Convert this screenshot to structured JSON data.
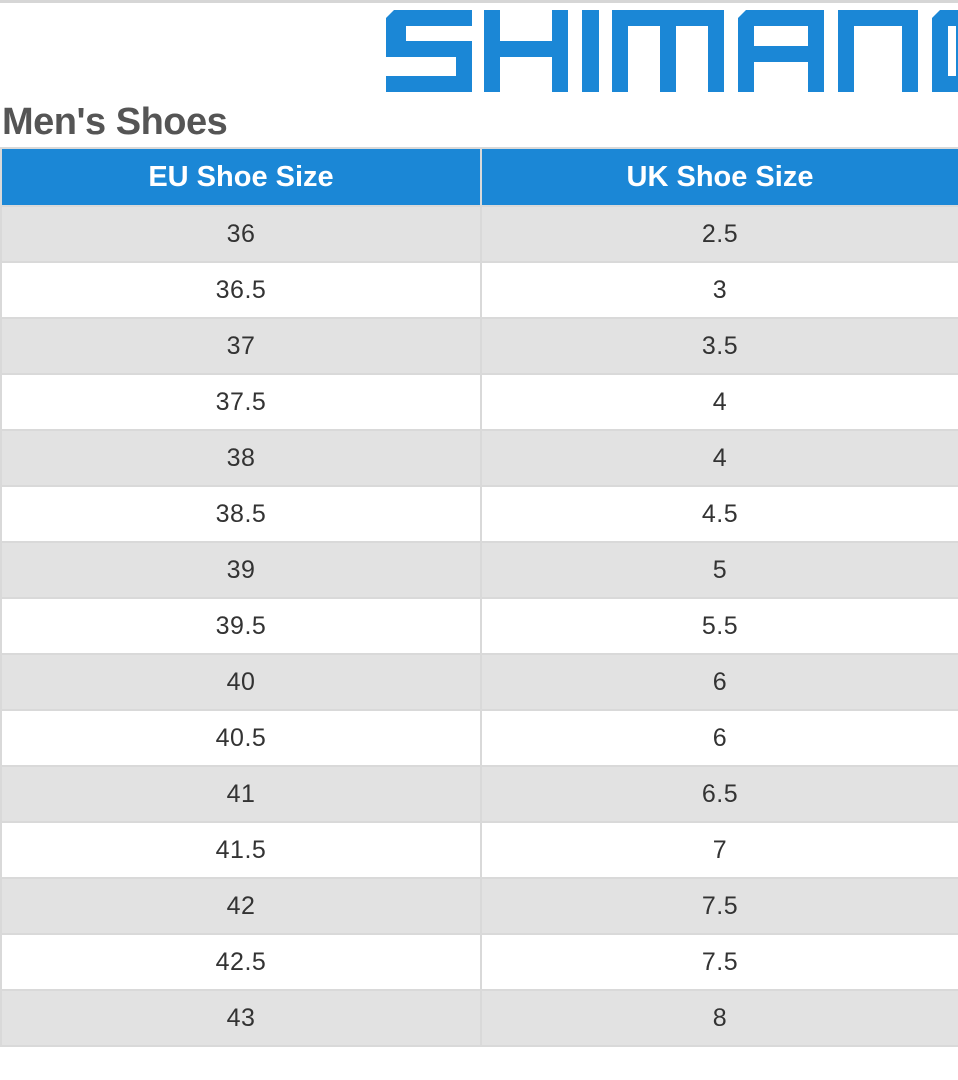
{
  "brand": {
    "logo_text": "SHIMANO",
    "color": "#1b87d6"
  },
  "title": "Men's Shoes",
  "table": {
    "header_color": "#1b87d6",
    "columns": [
      "EU Shoe Size",
      "UK Shoe Size"
    ],
    "rows": [
      [
        "36",
        "2.5"
      ],
      [
        "36.5",
        "3"
      ],
      [
        "37",
        "3.5"
      ],
      [
        "37.5",
        "4"
      ],
      [
        "38",
        "4"
      ],
      [
        "38.5",
        "4.5"
      ],
      [
        "39",
        "5"
      ],
      [
        "39.5",
        "5.5"
      ],
      [
        "40",
        "6"
      ],
      [
        "40.5",
        "6"
      ],
      [
        "41",
        "6.5"
      ],
      [
        "41.5",
        "7"
      ],
      [
        "42",
        "7.5"
      ],
      [
        "42.5",
        "7.5"
      ],
      [
        "43",
        "8"
      ]
    ]
  }
}
